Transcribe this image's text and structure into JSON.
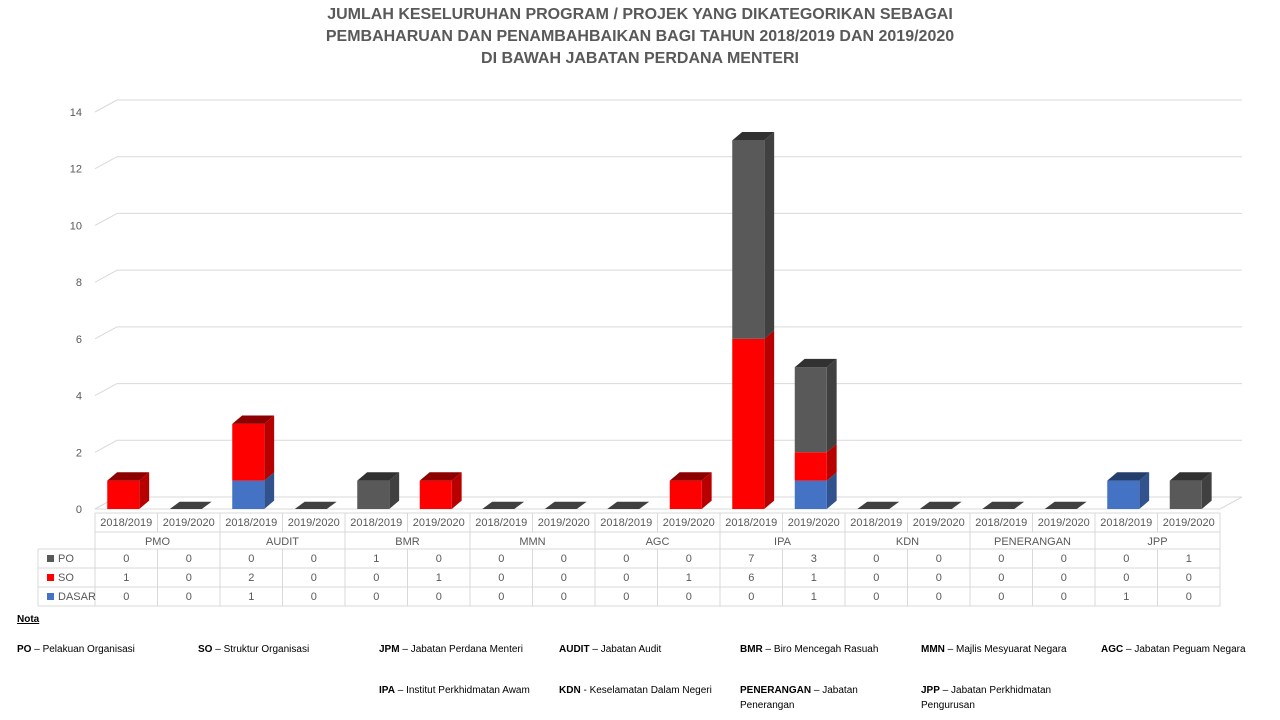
{
  "title_lines": [
    "JUMLAH KESELURUHAN PROGRAM / PROJEK YANG DIKATEGORIKAN SEBAGAI",
    "PEMBAHARUAN DAN PENAMBAHBAIKAN BAGI TAHUN 2018/2019 DAN 2019/2020",
    "DI BAWAH JABATAN PERDANA MENTERI"
  ],
  "chart_data": {
    "type": "bar",
    "stacked": true,
    "three_d": true,
    "groups": [
      "PMO",
      "AUDIT",
      "BMR",
      "MMN",
      "AGC",
      "IPA",
      "KDN",
      "PENERANGAN",
      "JPP"
    ],
    "periods": [
      "2018/2019",
      "2019/2020"
    ],
    "categories": [
      "2018/2019",
      "2019/2020",
      "2018/2019",
      "2019/2020",
      "2018/2019",
      "2019/2020",
      "2018/2019",
      "2019/2020",
      "2018/2019",
      "2019/2020",
      "2018/2019",
      "2019/2020",
      "2018/2019",
      "2019/2020",
      "2018/2019",
      "2019/2020",
      "2018/2019",
      "2019/2020"
    ],
    "series": [
      {
        "name": "PO",
        "color": "#595959",
        "values": [
          0,
          0,
          0,
          0,
          1,
          0,
          0,
          0,
          0,
          0,
          7,
          3,
          0,
          0,
          0,
          0,
          0,
          1
        ]
      },
      {
        "name": "SO",
        "color": "#ff0000",
        "values": [
          1,
          0,
          2,
          0,
          0,
          1,
          0,
          0,
          0,
          1,
          6,
          1,
          0,
          0,
          0,
          0,
          0,
          0
        ]
      },
      {
        "name": "DASAR",
        "color": "#4472c4",
        "values": [
          0,
          0,
          1,
          0,
          0,
          0,
          0,
          0,
          0,
          0,
          0,
          1,
          0,
          0,
          0,
          0,
          1,
          0
        ]
      }
    ],
    "stack_order_bottom_to_top": [
      "DASAR",
      "SO",
      "PO"
    ],
    "ylim": [
      0,
      14
    ],
    "yticks": [
      0,
      2,
      4,
      6,
      8,
      10,
      12,
      14
    ],
    "grid": true,
    "legend": "data-table"
  },
  "notes": {
    "heading": "Nota",
    "items": [
      {
        "abbr": "PO",
        "desc": "Pelakuan Organisasi"
      },
      {
        "abbr": "SO",
        "desc": "Struktur Organisasi"
      },
      {
        "abbr": "JPM",
        "desc": "Jabatan Perdana Menteri"
      },
      {
        "abbr": "AUDIT",
        "desc": "Jabatan Audit"
      },
      {
        "abbr": "BMR",
        "desc": "Biro Mencegah Rasuah"
      },
      {
        "abbr": "MMN",
        "desc": "Majlis Mesyuarat Negara"
      },
      {
        "abbr": "AGC",
        "desc": "Jabatan Peguam Negara"
      },
      {
        "abbr": "IPA",
        "desc": "Institut Perkhidmatan Awam"
      },
      {
        "abbr": "KDN",
        "desc": "Keselamatan Dalam Negeri"
      },
      {
        "abbr": "PENERANGAN",
        "desc": "Jabatan Penerangan"
      },
      {
        "abbr": "JPP",
        "desc": "Jabatan Perkhidmatan Pengurusan"
      }
    ]
  }
}
